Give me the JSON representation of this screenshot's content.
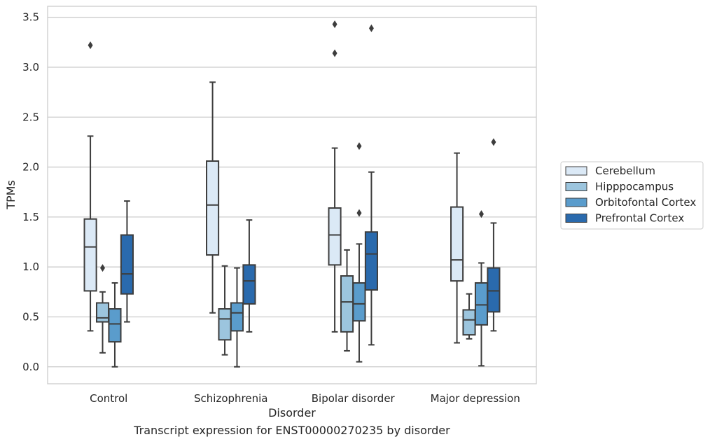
{
  "caption": "Transcript expression for ENST00000270235 by disorder",
  "chart_data": {
    "type": "boxplot",
    "title": "",
    "xlabel": "Disorder",
    "ylabel": "TPMs",
    "ylim": [
      -0.17,
      3.61
    ],
    "yticks": [
      0.0,
      0.5,
      1.0,
      1.5,
      2.0,
      2.5,
      3.0,
      3.5
    ],
    "ytick_labels": [
      "0.0",
      "0.5",
      "1.0",
      "1.5",
      "2.0",
      "2.5",
      "3.0",
      "3.5"
    ],
    "grid": true,
    "legend_position": "right",
    "categories": [
      "Control",
      "Schizophrenia",
      "Bipolar disorder",
      "Major depression"
    ],
    "series": [
      {
        "name": "Cerebellum",
        "color": "#dbe9f6",
        "boxes": [
          {
            "whislo": 0.36,
            "q1": 0.76,
            "med": 1.2,
            "q3": 1.48,
            "whishi": 2.31,
            "fliers": [
              3.22
            ]
          },
          {
            "whislo": 0.54,
            "q1": 1.12,
            "med": 1.62,
            "q3": 2.06,
            "whishi": 2.85,
            "fliers": []
          },
          {
            "whislo": 0.35,
            "q1": 1.02,
            "med": 1.32,
            "q3": 1.59,
            "whishi": 2.19,
            "fliers": [
              3.14,
              3.43
            ]
          },
          {
            "whislo": 0.24,
            "q1": 0.86,
            "med": 1.07,
            "q3": 1.6,
            "whishi": 2.14,
            "fliers": []
          }
        ]
      },
      {
        "name": "Hipppocampus",
        "color": "#9cc5de",
        "boxes": [
          {
            "whislo": 0.14,
            "q1": 0.45,
            "med": 0.49,
            "q3": 0.64,
            "whishi": 0.75,
            "fliers": [
              0.99
            ]
          },
          {
            "whislo": 0.12,
            "q1": 0.27,
            "med": 0.48,
            "q3": 0.58,
            "whishi": 1.01,
            "fliers": []
          },
          {
            "whislo": 0.16,
            "q1": 0.35,
            "med": 0.65,
            "q3": 0.91,
            "whishi": 1.17,
            "fliers": []
          },
          {
            "whislo": 0.28,
            "q1": 0.32,
            "med": 0.47,
            "q3": 0.57,
            "whishi": 0.73,
            "fliers": []
          }
        ]
      },
      {
        "name": "Orbitofontal Cortex",
        "color": "#5a9ccc",
        "boxes": [
          {
            "whislo": 0.0,
            "q1": 0.25,
            "med": 0.43,
            "q3": 0.58,
            "whishi": 0.84,
            "fliers": []
          },
          {
            "whislo": 0.0,
            "q1": 0.36,
            "med": 0.54,
            "q3": 0.64,
            "whishi": 0.99,
            "fliers": []
          },
          {
            "whislo": 0.05,
            "q1": 0.46,
            "med": 0.63,
            "q3": 0.84,
            "whishi": 1.23,
            "fliers": [
              1.54,
              2.21
            ]
          },
          {
            "whislo": 0.01,
            "q1": 0.42,
            "med": 0.62,
            "q3": 0.84,
            "whishi": 1.04,
            "fliers": [
              1.53
            ]
          }
        ]
      },
      {
        "name": "Prefrontal Cortex",
        "color": "#2a6aad",
        "boxes": [
          {
            "whislo": 0.45,
            "q1": 0.73,
            "med": 0.93,
            "q3": 1.32,
            "whishi": 1.66,
            "fliers": []
          },
          {
            "whislo": 0.35,
            "q1": 0.63,
            "med": 0.86,
            "q3": 1.02,
            "whishi": 1.47,
            "fliers": []
          },
          {
            "whislo": 0.22,
            "q1": 0.77,
            "med": 1.13,
            "q3": 1.35,
            "whishi": 1.95,
            "fliers": [
              3.39
            ]
          },
          {
            "whislo": 0.36,
            "q1": 0.55,
            "med": 0.76,
            "q3": 0.99,
            "whishi": 1.44,
            "fliers": [
              2.25
            ]
          }
        ]
      }
    ]
  }
}
